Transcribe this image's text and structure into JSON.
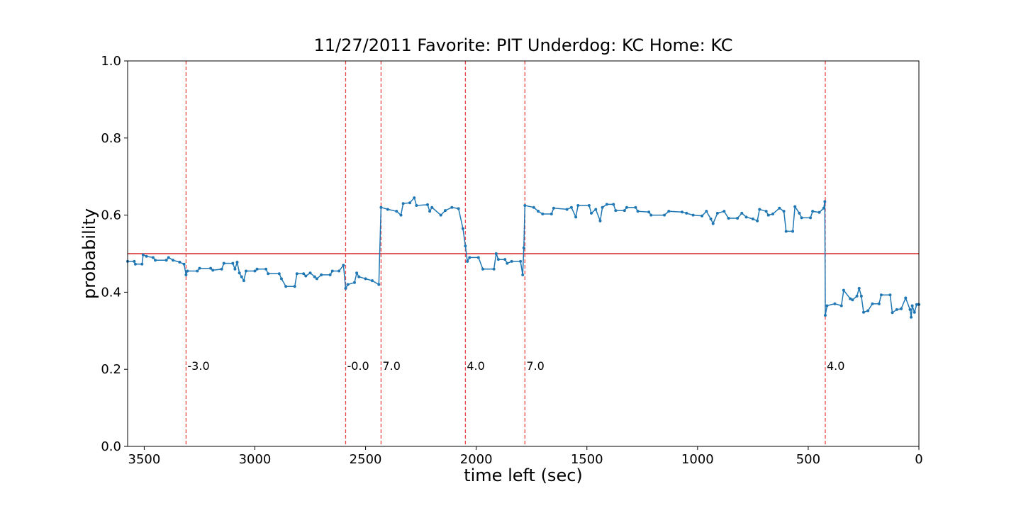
{
  "chart_data": {
    "type": "line",
    "title": "11/27/2011 Favorite: PIT Underdog: KC Home: KC",
    "x_label": "time left (sec)",
    "y_label": "probability",
    "xlim": [
      3575,
      0
    ],
    "ylim": [
      0,
      1
    ],
    "xticks": [
      3500,
      3000,
      2500,
      2000,
      1500,
      1000,
      500,
      0
    ],
    "yticks": [
      {
        "value": 0,
        "label": "0.0"
      },
      0.2,
      0.4,
      0.6,
      0.8,
      {
        "value": 1,
        "label": "1.0"
      }
    ],
    "hline": {
      "value": 0.5,
      "color": "#d62728"
    },
    "events": {
      "color": "#ee4444",
      "x": [
        3311,
        2590,
        2430,
        2049,
        1780,
        423
      ],
      "labels": [
        "-3.0",
        "-0.0",
        "7.0",
        "4.0",
        "7.0",
        "4.0"
      ]
    },
    "series": [
      {
        "color": "#1f77b4",
        "x": [
          3575,
          3545,
          3540,
          3510,
          3505,
          3490,
          3460,
          3450,
          3400,
          3390,
          3370,
          3340,
          3320,
          3311,
          3305,
          3260,
          3250,
          3200,
          3190,
          3150,
          3140,
          3100,
          3090,
          3080,
          3070,
          3060,
          3050,
          3040,
          3000,
          2990,
          2950,
          2940,
          2890,
          2880,
          2860,
          2820,
          2810,
          2780,
          2770,
          2750,
          2730,
          2720,
          2700,
          2660,
          2650,
          2620,
          2600,
          2590,
          2580,
          2550,
          2540,
          2530,
          2500,
          2470,
          2440,
          2430,
          2400,
          2360,
          2340,
          2330,
          2300,
          2280,
          2270,
          2220,
          2210,
          2200,
          2160,
          2140,
          2110,
          2080,
          2060,
          2049,
          2040,
          2030,
          1990,
          1970,
          1920,
          1910,
          1900,
          1870,
          1860,
          1840,
          1800,
          1790,
          1785,
          1780,
          1740,
          1720,
          1700,
          1660,
          1650,
          1590,
          1570,
          1550,
          1540,
          1490,
          1480,
          1460,
          1440,
          1430,
          1410,
          1380,
          1370,
          1330,
          1320,
          1280,
          1270,
          1220,
          1210,
          1150,
          1130,
          1070,
          1050,
          1020,
          980,
          960,
          940,
          930,
          910,
          880,
          860,
          820,
          800,
          780,
          750,
          730,
          720,
          690,
          680,
          660,
          630,
          610,
          600,
          570,
          560,
          540,
          530,
          490,
          480,
          450,
          430,
          425,
          423,
          415,
          380,
          350,
          340,
          310,
          300,
          280,
          270,
          260,
          250,
          230,
          210,
          180,
          170,
          130,
          120,
          100,
          80,
          60,
          40,
          35,
          30,
          20,
          10,
          0
        ],
        "values": [
          0.48,
          0.48,
          0.473,
          0.473,
          0.497,
          0.493,
          0.49,
          0.483,
          0.483,
          0.49,
          0.483,
          0.478,
          0.473,
          0.445,
          0.455,
          0.455,
          0.462,
          0.462,
          0.457,
          0.46,
          0.475,
          0.475,
          0.46,
          0.478,
          0.45,
          0.44,
          0.43,
          0.455,
          0.455,
          0.46,
          0.46,
          0.448,
          0.448,
          0.435,
          0.415,
          0.415,
          0.448,
          0.448,
          0.442,
          0.45,
          0.44,
          0.435,
          0.445,
          0.445,
          0.455,
          0.455,
          0.47,
          0.41,
          0.42,
          0.425,
          0.45,
          0.44,
          0.435,
          0.43,
          0.42,
          0.62,
          0.615,
          0.61,
          0.6,
          0.63,
          0.632,
          0.645,
          0.625,
          0.627,
          0.61,
          0.62,
          0.6,
          0.612,
          0.62,
          0.617,
          0.565,
          0.52,
          0.48,
          0.49,
          0.49,
          0.46,
          0.46,
          0.5,
          0.485,
          0.485,
          0.475,
          0.48,
          0.48,
          0.445,
          0.515,
          0.625,
          0.62,
          0.61,
          0.603,
          0.603,
          0.618,
          0.615,
          0.62,
          0.595,
          0.625,
          0.625,
          0.605,
          0.615,
          0.585,
          0.62,
          0.628,
          0.628,
          0.612,
          0.612,
          0.62,
          0.62,
          0.61,
          0.608,
          0.6,
          0.6,
          0.61,
          0.608,
          0.605,
          0.6,
          0.598,
          0.61,
          0.59,
          0.578,
          0.605,
          0.61,
          0.592,
          0.592,
          0.605,
          0.595,
          0.59,
          0.585,
          0.615,
          0.61,
          0.6,
          0.603,
          0.618,
          0.61,
          0.558,
          0.558,
          0.622,
          0.605,
          0.593,
          0.593,
          0.61,
          0.607,
          0.618,
          0.635,
          0.34,
          0.365,
          0.37,
          0.365,
          0.405,
          0.383,
          0.38,
          0.39,
          0.41,
          0.39,
          0.348,
          0.352,
          0.37,
          0.37,
          0.393,
          0.393,
          0.347,
          0.355,
          0.357,
          0.385,
          0.355,
          0.335,
          0.365,
          0.348,
          0.368,
          0.368
        ]
      }
    ]
  }
}
